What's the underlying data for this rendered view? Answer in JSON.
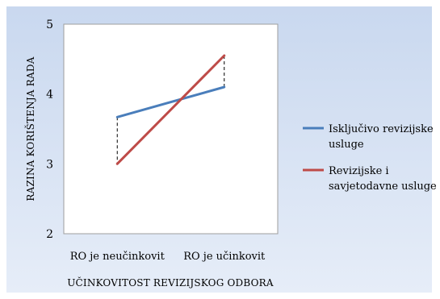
{
  "chart_data": {
    "type": "line",
    "categories": [
      "RO je neučinkovit",
      "RO je učinkovit"
    ],
    "series": [
      {
        "name": "Isključivo revizijske usluge",
        "values": [
          3.67,
          4.1
        ],
        "color": "#4a7ebb"
      },
      {
        "name": "Revizijske i savjetodavne usluge",
        "values": [
          3.0,
          4.55
        ],
        "color": "#be4b48"
      }
    ],
    "xlabel": "UČINKOVITOST REVIZIJSKOG ODBORA",
    "ylabel": "RAZINA KORIŠTENJA RADA",
    "ylim": [
      2,
      5
    ],
    "yticks": [
      "2",
      "3",
      "4",
      "5"
    ],
    "grid": false,
    "legend_position": "right",
    "legend_lines": [
      [
        "Isključivo revizijske",
        "usluge"
      ],
      [
        "Revizijske i",
        "savjetodavne usluge"
      ]
    ],
    "drop_lines": true,
    "plot_background": "#ffffff",
    "chart_background": "#dbe5f4"
  }
}
